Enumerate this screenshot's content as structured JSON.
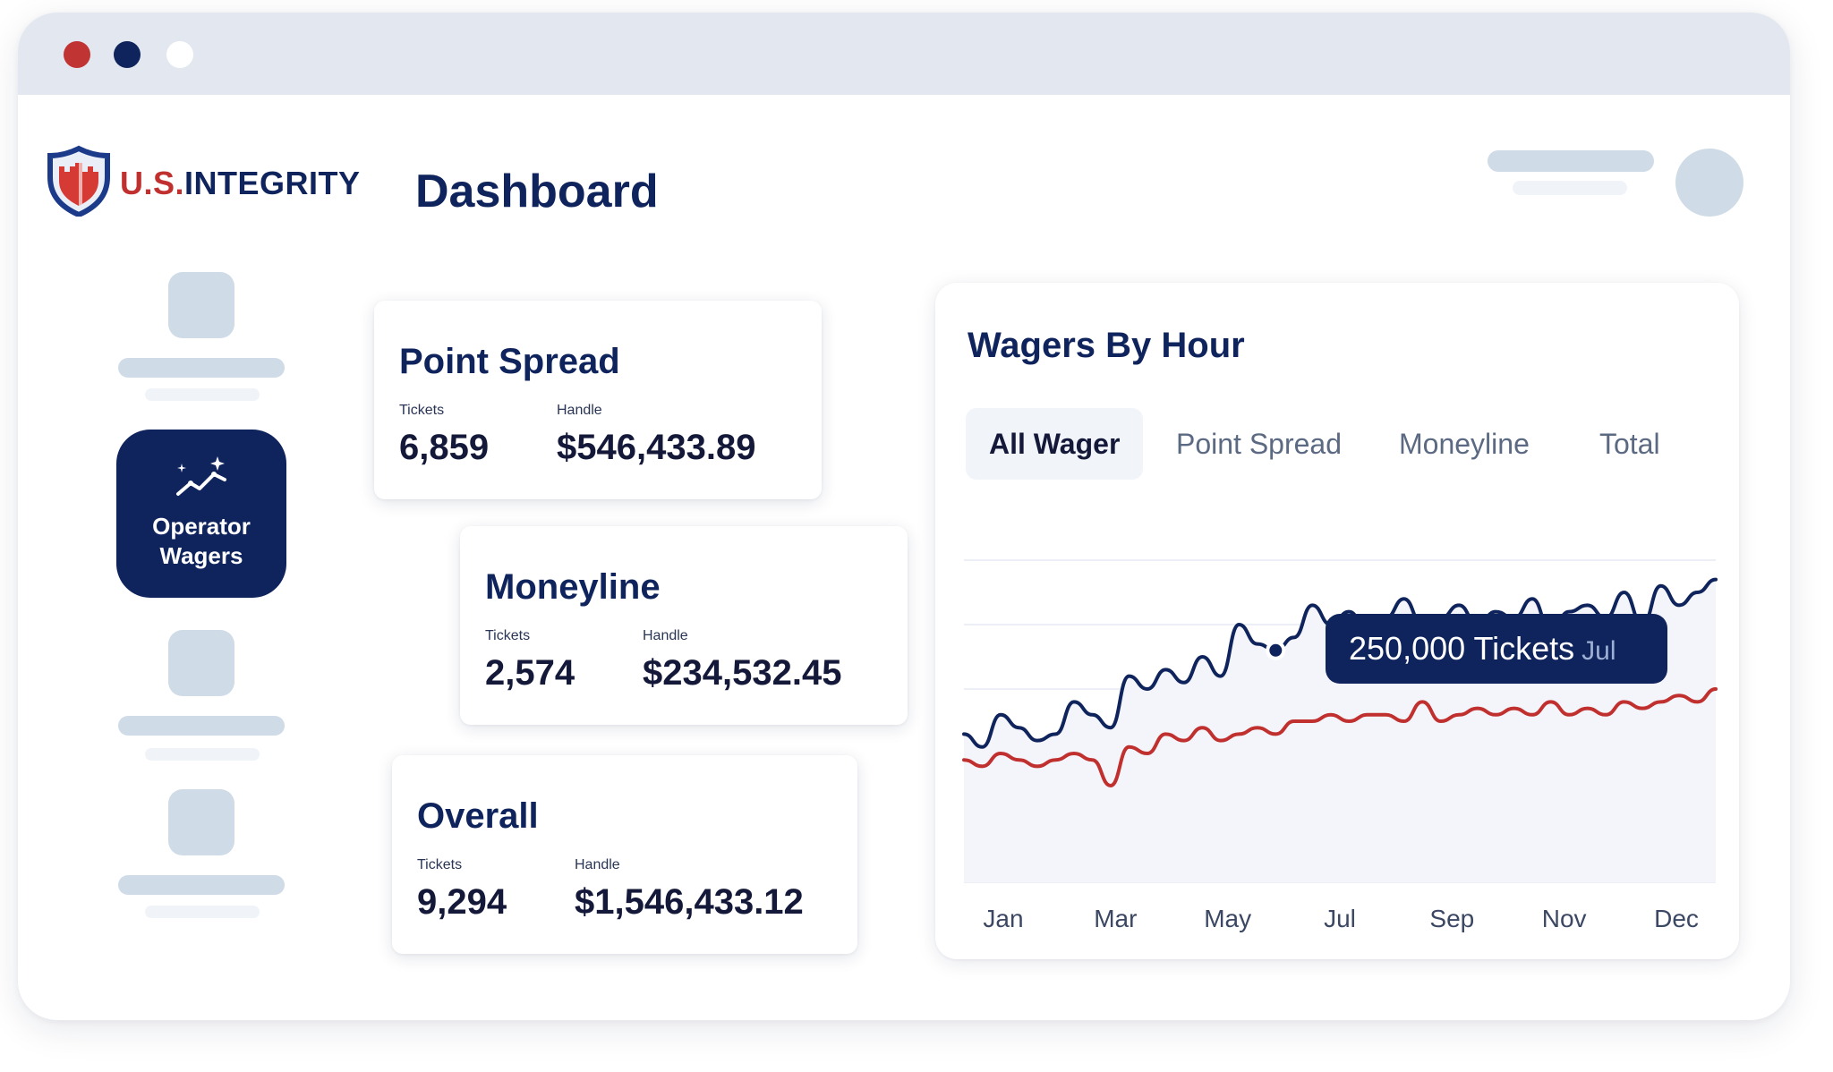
{
  "window": {
    "controls": [
      {
        "name": "close",
        "color": "#c03434"
      },
      {
        "name": "minimize",
        "color": "#0f245c"
      },
      {
        "name": "maximize",
        "color": "#ffffff"
      }
    ]
  },
  "brand": {
    "us": "U.S.",
    "integrity": "INTEGRITY",
    "colors": {
      "navy": "#0f245c",
      "red": "#c0302f"
    }
  },
  "header": {
    "title": "Dashboard"
  },
  "sidebar": {
    "active_item": {
      "label": "Operator Wagers",
      "icon": "sparkle-trend-icon"
    }
  },
  "cards": [
    {
      "title": "Point Spread",
      "tickets_label": "Tickets",
      "tickets": "6,859",
      "handle_label": "Handle",
      "handle": "$546,433.89"
    },
    {
      "title": "Moneyline",
      "tickets_label": "Tickets",
      "tickets": "2,574",
      "handle_label": "Handle",
      "handle": "$234,532.45"
    },
    {
      "title": "Overall",
      "tickets_label": "Tickets",
      "tickets": "9,294",
      "handle_label": "Handle",
      "handle": "$1,546,433.12"
    }
  ],
  "chart_panel": {
    "title": "Wagers By Hour",
    "tabs": [
      "All Wager",
      "Point Spread",
      "Moneyline",
      "Total"
    ],
    "active_tab": "All Wager",
    "tooltip": {
      "value": "250,000 Tickets",
      "month": "Jul"
    }
  },
  "chart_data": {
    "type": "line",
    "title": "Wagers By Hour",
    "xlabel": "",
    "ylabel": "",
    "x_tick_labels": [
      "Jan",
      "Mar",
      "May",
      "Jul",
      "Sep",
      "Nov",
      "Dec"
    ],
    "ylim": [
      0,
      5
    ],
    "grid": true,
    "series": [
      {
        "name": "series-navy",
        "color": "#0f245c",
        "values": [
          2.3,
          2.1,
          2.6,
          2.4,
          2.2,
          2.3,
          2.8,
          2.6,
          2.4,
          3.2,
          3.0,
          3.3,
          3.1,
          3.5,
          3.2,
          4.0,
          3.7,
          3.6,
          3.8,
          4.3,
          4.0,
          4.2,
          3.9,
          4.1,
          4.4,
          4.0,
          4.1,
          4.3,
          4.0,
          4.2,
          4.1,
          4.4,
          3.9,
          4.2,
          4.3,
          4.1,
          4.5,
          4.0,
          4.6,
          4.3,
          4.5,
          4.7
        ]
      },
      {
        "name": "series-red",
        "color": "#c0302f",
        "values": [
          1.9,
          1.8,
          2.0,
          1.9,
          1.8,
          1.9,
          2.0,
          1.9,
          1.5,
          2.1,
          2.0,
          2.3,
          2.2,
          2.4,
          2.2,
          2.3,
          2.4,
          2.3,
          2.5,
          2.5,
          2.6,
          2.5,
          2.6,
          2.6,
          2.5,
          2.8,
          2.5,
          2.6,
          2.7,
          2.6,
          2.7,
          2.6,
          2.8,
          2.6,
          2.7,
          2.6,
          2.8,
          2.7,
          2.8,
          2.9,
          2.8,
          3.0
        ]
      }
    ],
    "highlight": {
      "series": "series-navy",
      "x_label": "Jul",
      "value": "250,000 Tickets"
    }
  }
}
